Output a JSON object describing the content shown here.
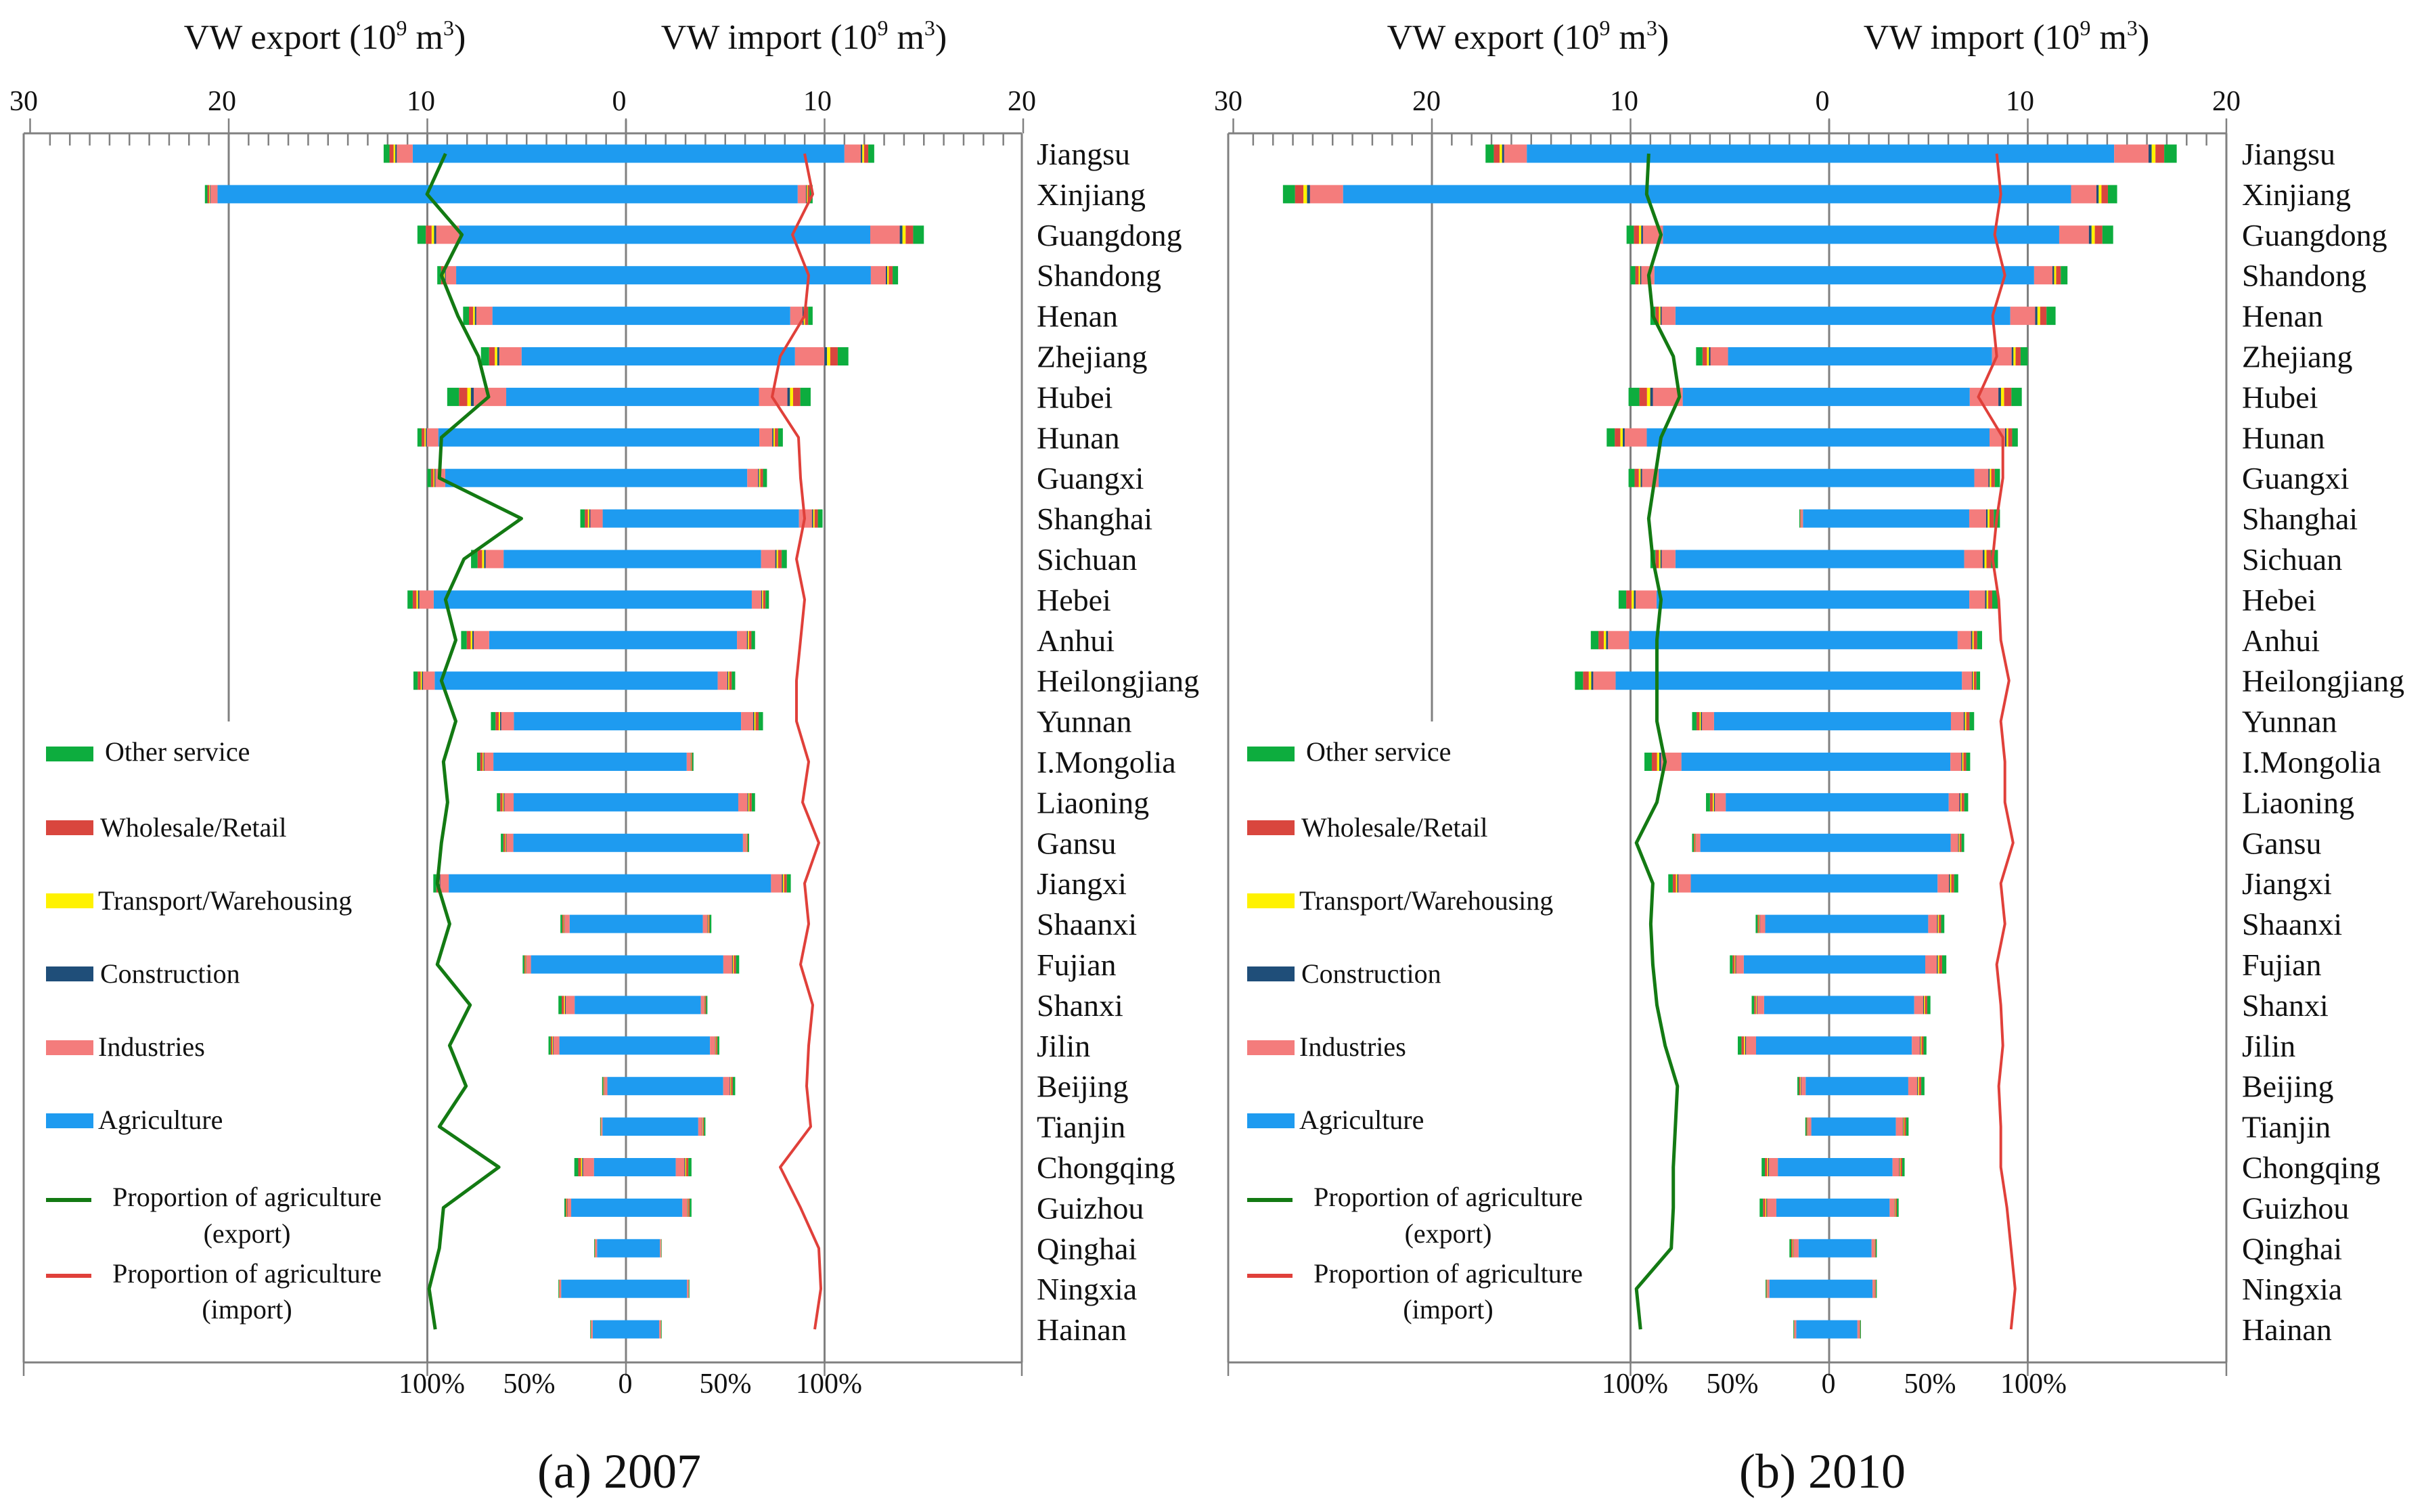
{
  "colors": {
    "agriculture": "#1E9BF0",
    "industries": "#F47C7C",
    "construction": "#1F4E79",
    "transport": "#FFF200",
    "wholesale": "#D9463E",
    "other_service": "#0DAD3E",
    "export_line": "#137A13",
    "import_line": "#E0403A",
    "axis": "#808080"
  },
  "axis_labels": {
    "export": "VW export (10",
    "import": "VW import (10",
    "exp9": "9",
    "unit": " m",
    "exp3": "3",
    "close": ")"
  },
  "legend": {
    "other": "Other service",
    "wholesale": "Wholesale/Retail",
    "transport": "Transport/Warehousing",
    "construction": "Construction",
    "industries": "Industries",
    "agriculture": "Agriculture",
    "prop_export_1": "Proportion of agriculture",
    "prop_export_2": "(export)",
    "prop_import_1": "Proportion of agriculture",
    "prop_import_2": "(import)"
  },
  "chart_data": [
    {
      "type": "bar",
      "title": "(a) 2007",
      "xlim": [
        -30,
        20
      ],
      "top_ticks": [
        "30",
        "20",
        "10",
        "0",
        "10",
        "20"
      ],
      "pct_ticks": [
        "100%",
        "50%",
        "0",
        "50%",
        "100%"
      ],
      "categories": [
        "Jiangsu",
        "Xinjiang",
        "Guangdong",
        "Shandong",
        "Henan",
        "Zhejiang",
        "Hubei",
        "Hunan",
        "Guangxi",
        "Shanghai",
        "Sichuan",
        "Hebei",
        "Anhui",
        "Heilongjiang",
        "Yunnan",
        "I.Mongolia",
        "Liaoning",
        "Gansu",
        "Jiangxi",
        "Shaanxi",
        "Fujian",
        "Shanxi",
        "Jilin",
        "Beijing",
        "Tianjin",
        "Chongqing",
        "Guizhou",
        "Qinghai",
        "Ningxia",
        "Hainan"
      ],
      "export_total": [
        12.2,
        21.2,
        10.5,
        9.5,
        8.2,
        7.3,
        9.0,
        10.5,
        10.0,
        2.3,
        7.8,
        11.0,
        8.3,
        10.7,
        6.8,
        7.5,
        6.5,
        6.3,
        9.7,
        3.3,
        5.2,
        3.4,
        3.9,
        1.2,
        1.3,
        2.6,
        3.1,
        1.6,
        3.4,
        1.8
      ],
      "import_total": [
        12.5,
        9.4,
        15.0,
        13.7,
        9.4,
        11.2,
        9.3,
        7.9,
        7.1,
        9.9,
        8.1,
        7.2,
        6.5,
        5.5,
        6.9,
        3.4,
        6.5,
        6.2,
        8.3,
        4.3,
        5.7,
        4.1,
        4.7,
        5.5,
        4.0,
        3.3,
        3.3,
        1.8,
        3.2,
        1.8
      ],
      "agri_export_pct": [
        88,
        97,
        80,
        90,
        82,
        72,
        67,
        90,
        91,
        51,
        79,
        88,
        83,
        90,
        83,
        89,
        87,
        90,
        92,
        86,
        92,
        76,
        86,
        78,
        91,
        62,
        89,
        91,
        96,
        93
      ],
      "agri_import_pct": [
        88,
        92,
        82,
        90,
        88,
        76,
        72,
        85,
        86,
        88,
        84,
        88,
        86,
        84,
        84,
        90,
        87,
        95,
        88,
        90,
        86,
        92,
        90,
        89,
        91,
        76,
        86,
        95,
        96,
        93
      ]
    },
    {
      "type": "bar",
      "title": "(b) 2010",
      "xlim": [
        -30,
        20
      ],
      "top_ticks": [
        "30",
        "20",
        "10",
        "0",
        "10",
        "20"
      ],
      "pct_ticks": [
        "100%",
        "50%",
        "0",
        "50%",
        "100%"
      ],
      "categories": [
        "Jiangsu",
        "Xinjiang",
        "Guangdong",
        "Shandong",
        "Henan",
        "Zhejiang",
        "Hubei",
        "Hunan",
        "Guangxi",
        "Shanghai",
        "Sichuan",
        "Hebei",
        "Anhui",
        "Heilongjiang",
        "Yunnan",
        "I.Mongolia",
        "Liaoning",
        "Gansu",
        "Jiangxi",
        "Shaanxi",
        "Fujian",
        "Shanxi",
        "Jilin",
        "Beijing",
        "Tianjin",
        "Chongqing",
        "Guizhou",
        "Qinghai",
        "Ningxia",
        "Hainan"
      ],
      "export_total": [
        17.3,
        27.5,
        10.2,
        10.0,
        9.0,
        6.7,
        10.1,
        11.2,
        10.1,
        1.5,
        9.0,
        10.6,
        12.0,
        12.8,
        6.9,
        9.3,
        6.2,
        6.9,
        8.1,
        3.7,
        5.0,
        3.9,
        4.6,
        1.6,
        1.2,
        3.4,
        3.5,
        2.0,
        3.2,
        1.8
      ],
      "import_total": [
        17.5,
        14.5,
        14.3,
        12.0,
        11.4,
        10.0,
        9.7,
        9.5,
        8.6,
        8.6,
        8.5,
        8.5,
        7.7,
        7.6,
        7.3,
        7.1,
        7.0,
        6.8,
        6.5,
        5.8,
        5.9,
        5.1,
        4.9,
        4.8,
        4.0,
        3.8,
        3.5,
        2.4,
        2.4,
        1.6
      ],
      "agri_export_pct": [
        88,
        89,
        82,
        88,
        86,
        76,
        73,
        82,
        85,
        88,
        86,
        82,
        84,
        84,
        84,
        80,
        84,
        94,
        86,
        87,
        86,
        84,
        80,
        74,
        75,
        76,
        76,
        77,
        94,
        92
      ],
      "agri_import_pct": [
        82,
        84,
        81,
        86,
        80,
        82,
        73,
        85,
        85,
        82,
        80,
        83,
        84,
        88,
        84,
        86,
        86,
        90,
        84,
        86,
        82,
        84,
        85,
        83,
        84,
        84,
        87,
        89,
        91,
        89
      ]
    }
  ]
}
